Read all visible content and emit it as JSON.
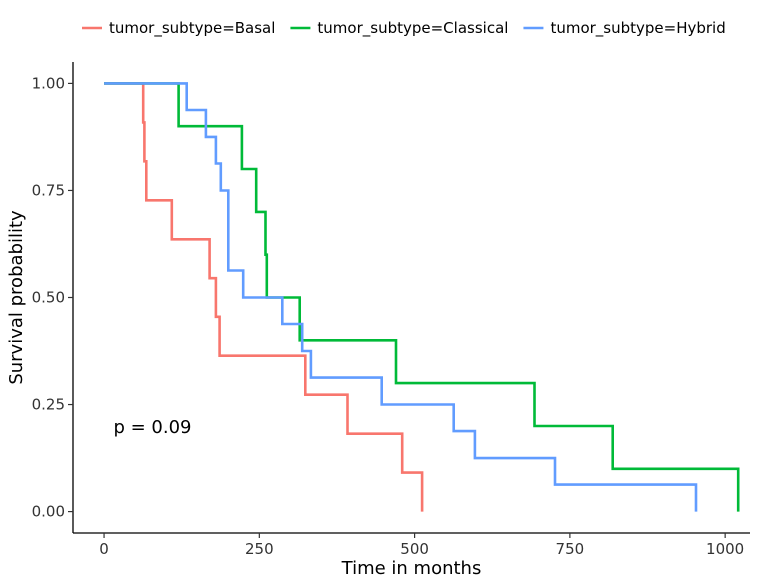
{
  "chart_data": {
    "type": "line",
    "subtype": "kaplan-meier step curves",
    "xlabel": "Time in months",
    "ylabel": "Survival probability",
    "xlim": [
      -50,
      1040
    ],
    "ylim": [
      -0.05,
      1.05
    ],
    "x_ticks": [
      0,
      250,
      500,
      750,
      1000
    ],
    "x_tick_labels": [
      "0",
      "250",
      "500",
      "750",
      "1000"
    ],
    "y_ticks": [
      0,
      0.25,
      0.5,
      0.75,
      1.0
    ],
    "y_tick_labels": [
      "0.00",
      "0.25",
      "0.50",
      "0.75",
      "1.00"
    ],
    "grid": false,
    "legend_position": "top",
    "annotation": {
      "text": "p = 0.09",
      "x": 20,
      "y": 0.19
    },
    "series": [
      {
        "name": "tumor_subtype=Basal",
        "color": "#F8766D",
        "points": [
          [
            0,
            1.0
          ],
          [
            63,
            1.0
          ],
          [
            63,
            0.909
          ],
          [
            65,
            0.909
          ],
          [
            65,
            0.818
          ],
          [
            68,
            0.818
          ],
          [
            68,
            0.727
          ],
          [
            109,
            0.727
          ],
          [
            109,
            0.636
          ],
          [
            170,
            0.636
          ],
          [
            170,
            0.545
          ],
          [
            180,
            0.545
          ],
          [
            180,
            0.455
          ],
          [
            186,
            0.455
          ],
          [
            186,
            0.364
          ],
          [
            324,
            0.364
          ],
          [
            324,
            0.273
          ],
          [
            392,
            0.273
          ],
          [
            392,
            0.182
          ],
          [
            480,
            0.182
          ],
          [
            480,
            0.091
          ],
          [
            512,
            0.091
          ],
          [
            512,
            0.0
          ]
        ]
      },
      {
        "name": "tumor_subtype=Classical",
        "color": "#00BA38",
        "points": [
          [
            0,
            1.0
          ],
          [
            120,
            1.0
          ],
          [
            120,
            0.9
          ],
          [
            222,
            0.9
          ],
          [
            222,
            0.8
          ],
          [
            245,
            0.8
          ],
          [
            245,
            0.7
          ],
          [
            260,
            0.7
          ],
          [
            260,
            0.6
          ],
          [
            262,
            0.6
          ],
          [
            262,
            0.5
          ],
          [
            315,
            0.5
          ],
          [
            315,
            0.4
          ],
          [
            470,
            0.4
          ],
          [
            470,
            0.3
          ],
          [
            693,
            0.3
          ],
          [
            693,
            0.2
          ],
          [
            819,
            0.2
          ],
          [
            819,
            0.1
          ],
          [
            1021,
            0.1
          ],
          [
            1021,
            0.0
          ]
        ]
      },
      {
        "name": "tumor_subtype=Hybrid",
        "color": "#619CFF",
        "points": [
          [
            0,
            1.0
          ],
          [
            133,
            1.0
          ],
          [
            133,
            0.938
          ],
          [
            164,
            0.938
          ],
          [
            164,
            0.875
          ],
          [
            180,
            0.875
          ],
          [
            180,
            0.813
          ],
          [
            188,
            0.813
          ],
          [
            188,
            0.75
          ],
          [
            200,
            0.75
          ],
          [
            200,
            0.563
          ],
          [
            224,
            0.563
          ],
          [
            224,
            0.5
          ],
          [
            287,
            0.5
          ],
          [
            287,
            0.438
          ],
          [
            319,
            0.438
          ],
          [
            319,
            0.375
          ],
          [
            333,
            0.375
          ],
          [
            333,
            0.313
          ],
          [
            447,
            0.313
          ],
          [
            447,
            0.25
          ],
          [
            563,
            0.25
          ],
          [
            563,
            0.188
          ],
          [
            597,
            0.188
          ],
          [
            597,
            0.125
          ],
          [
            726,
            0.125
          ],
          [
            726,
            0.063
          ],
          [
            953,
            0.063
          ],
          [
            953,
            0.0
          ]
        ]
      }
    ]
  }
}
